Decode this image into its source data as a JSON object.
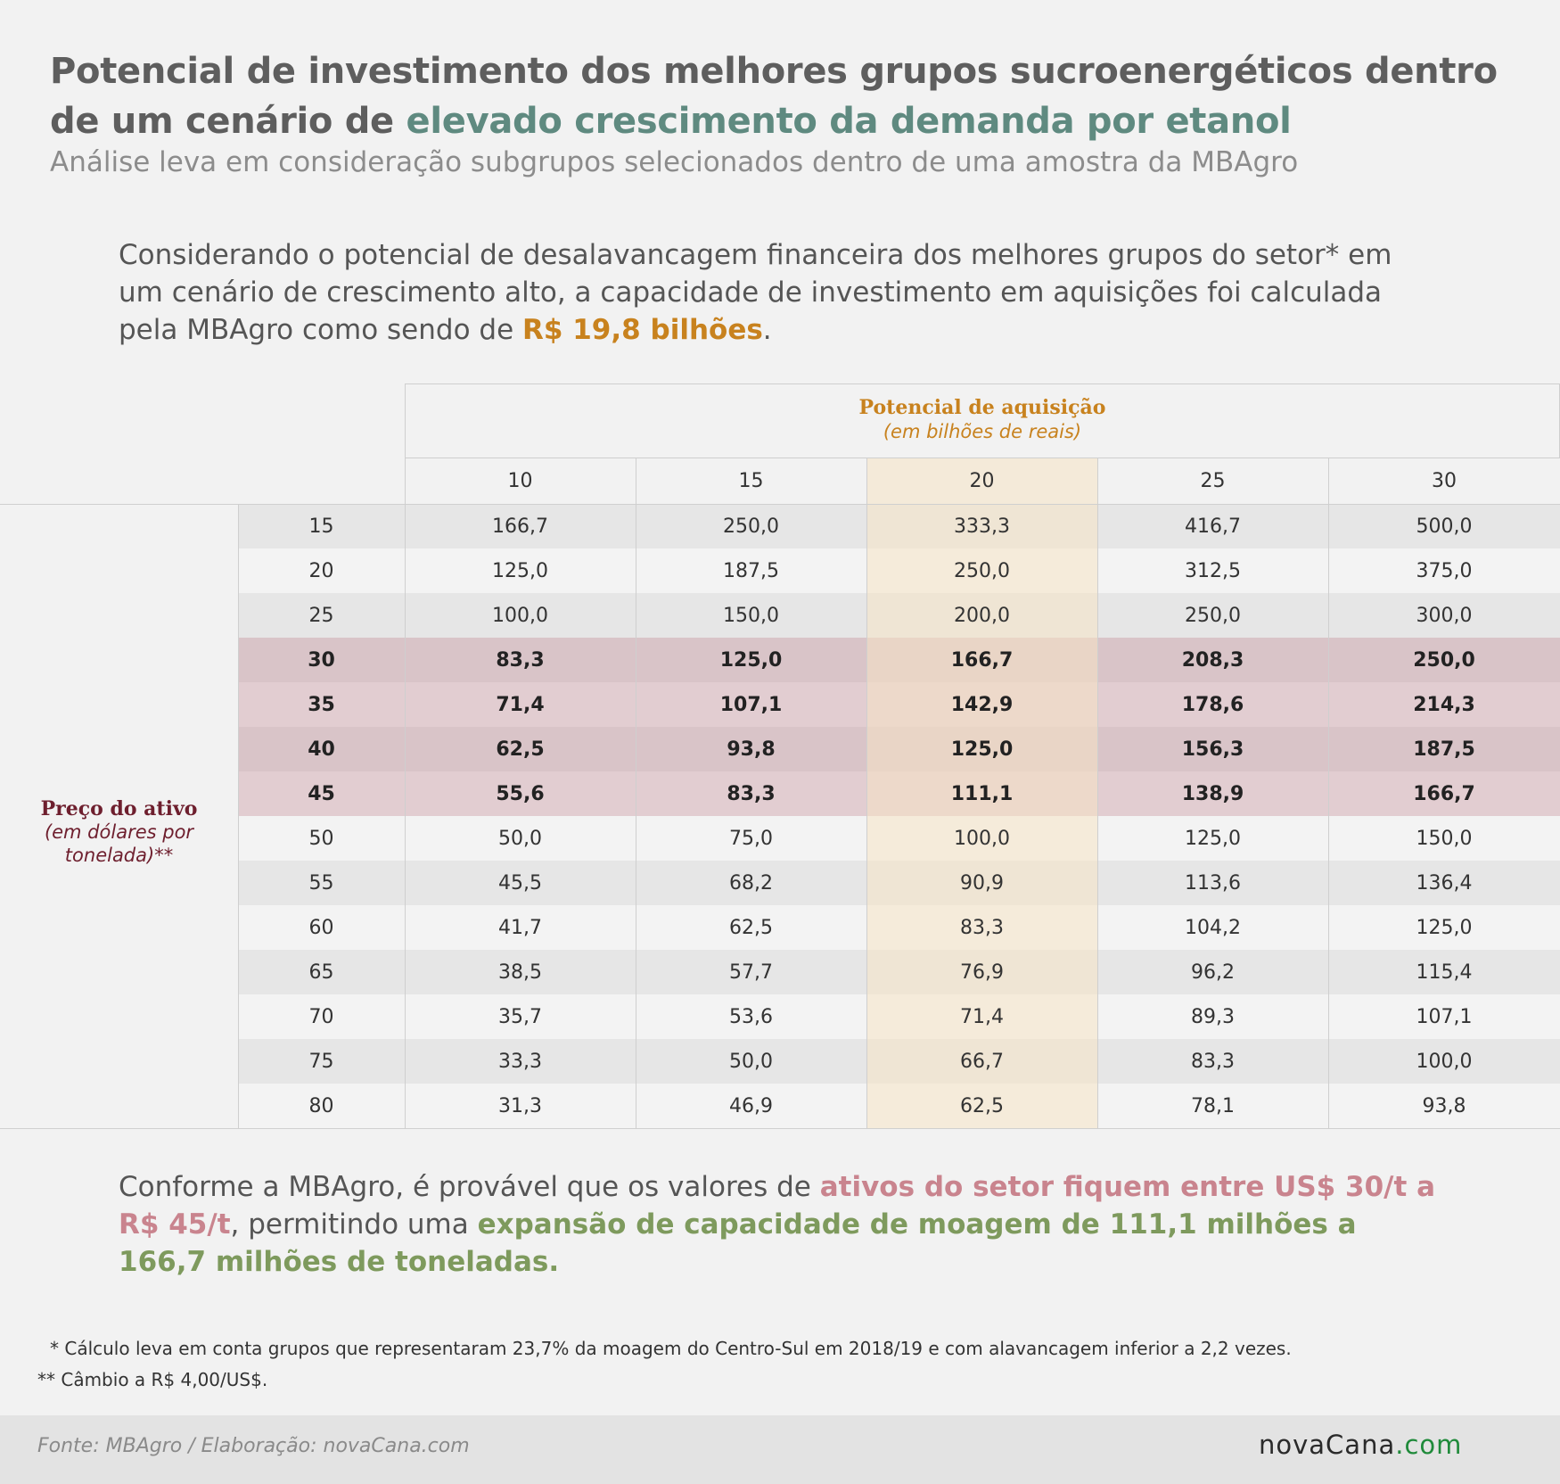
{
  "header": {
    "title_part1": "Potencial de investimento dos melhores grupos sucroenergéticos dentro de um cenário de ",
    "title_highlight": "elevado crescimento da demanda por etanol",
    "subtitle": "Análise leva em consideração subgrupos selecionados dentro de uma amostra da MBAgro"
  },
  "intro": {
    "text_part1": "Considerando o potencial de desalavancagem financeira dos melhores grupos do setor* em um cenário de crescimento alto, a capacidade de investimento em aquisições foi calculada pela MBAgro como sendo de ",
    "amount": "R$ 19,8 bilhões",
    "text_end": "."
  },
  "colors": {
    "title_highlight": "#5f8a80",
    "amount": "#c8821e",
    "bold_band_light": "#e2cdd1",
    "bold_band_dark": "#d9c4c8",
    "highlight_column": "#f5e4c4",
    "row_shaded": "#e6e6e6",
    "row_light": "#f3f3f3",
    "pink_text": "#c9848e",
    "green_text": "#7e9a5d",
    "logo_accent": "#1f8a3a"
  },
  "chart_data": {
    "type": "table",
    "column_header_title": "Potencial de aquisição",
    "column_header_subtitle": "(em bilhões de reais)",
    "row_header_title": "Preço do ativo",
    "row_header_subtitle": "(em dólares por tonelada)**",
    "columns": [
      "10",
      "15",
      "20",
      "25",
      "30"
    ],
    "highlighted_column": "20",
    "bold_rows": [
      "30",
      "35",
      "40",
      "45"
    ],
    "rows": [
      {
        "label": "15",
        "values": [
          "166,7",
          "250,0",
          "333,3",
          "416,7",
          "500,0"
        ]
      },
      {
        "label": "20",
        "values": [
          "125,0",
          "187,5",
          "250,0",
          "312,5",
          "375,0"
        ]
      },
      {
        "label": "25",
        "values": [
          "100,0",
          "150,0",
          "200,0",
          "250,0",
          "300,0"
        ]
      },
      {
        "label": "30",
        "values": [
          "83,3",
          "125,0",
          "166,7",
          "208,3",
          "250,0"
        ]
      },
      {
        "label": "35",
        "values": [
          "71,4",
          "107,1",
          "142,9",
          "178,6",
          "214,3"
        ]
      },
      {
        "label": "40",
        "values": [
          "62,5",
          "93,8",
          "125,0",
          "156,3",
          "187,5"
        ]
      },
      {
        "label": "45",
        "values": [
          "55,6",
          "83,3",
          "111,1",
          "138,9",
          "166,7"
        ]
      },
      {
        "label": "50",
        "values": [
          "50,0",
          "75,0",
          "100,0",
          "125,0",
          "150,0"
        ]
      },
      {
        "label": "55",
        "values": [
          "45,5",
          "68,2",
          "90,9",
          "113,6",
          "136,4"
        ]
      },
      {
        "label": "60",
        "values": [
          "41,7",
          "62,5",
          "83,3",
          "104,2",
          "125,0"
        ]
      },
      {
        "label": "65",
        "values": [
          "38,5",
          "57,7",
          "76,9",
          "96,2",
          "115,4"
        ]
      },
      {
        "label": "70",
        "values": [
          "35,7",
          "53,6",
          "71,4",
          "89,3",
          "107,1"
        ]
      },
      {
        "label": "75",
        "values": [
          "33,3",
          "50,0",
          "66,7",
          "83,3",
          "100,0"
        ]
      },
      {
        "label": "80",
        "values": [
          "31,3",
          "46,9",
          "62,5",
          "78,1",
          "93,8"
        ]
      }
    ]
  },
  "conclusion": {
    "part1": "Conforme a MBAgro, é provável que os valores de ",
    "pink": "ativos do setor fiquem entre US$ 30/t a R$ 45/t",
    "part2": ", permitindo uma ",
    "green": "expansão de capacidade de moagem de 111,1 milhões a 166,7 milhões de toneladas."
  },
  "notes": {
    "note1": "* Cálculo leva em conta grupos que representaram 23,7% da moagem do Centro-Sul em 2018/19 e com alavancagem inferior a 2,2 vezes.",
    "note2": "** Câmbio a R$ 4,00/US$."
  },
  "footer": {
    "source": "Fonte: MBAgro / Elaboração: novaCana.com",
    "logo_main": "novaCana",
    "logo_suffix": ".com"
  }
}
